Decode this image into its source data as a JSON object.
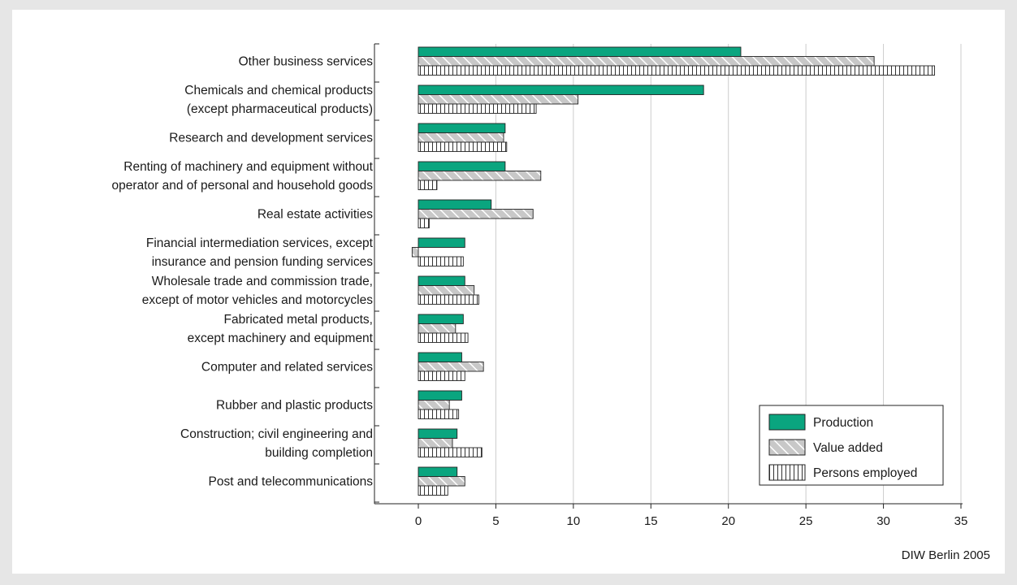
{
  "source": "DIW Berlin 2005",
  "colors": {
    "production": "#0aa57f",
    "value_added": "#c8c8c8",
    "persons_employed": "#ffffff",
    "grid": "#cccccc"
  },
  "chart_data": {
    "type": "bar",
    "orientation": "horizontal",
    "title": "",
    "xlabel": "",
    "ylabel": "",
    "xlim": [
      -2.5,
      35
    ],
    "xticks": [
      0,
      5,
      10,
      15,
      20,
      25,
      30,
      35
    ],
    "grid": "vertical",
    "legend_position": "bottom-right",
    "categories": [
      [
        "Other business services"
      ],
      [
        "Chemicals and chemical products",
        "(except pharmaceutical products)"
      ],
      [
        "Research and development services"
      ],
      [
        "Renting of machinery and equipment without",
        "operator and of personal and household goods"
      ],
      [
        "Real estate activities"
      ],
      [
        "Financial intermediation services, except",
        "insurance and pension funding services"
      ],
      [
        "Wholesale trade and commission trade,",
        "except of motor vehicles and motorcycles"
      ],
      [
        "Fabricated metal products,",
        "except machinery and equipment"
      ],
      [
        "Computer and related services"
      ],
      [
        "Rubber and plastic products"
      ],
      [
        "Construction; civil engineering and",
        "building completion"
      ],
      [
        "Post and telecommunications"
      ]
    ],
    "series": [
      {
        "name": "Production",
        "pattern": "solid",
        "values": [
          20.8,
          18.4,
          5.6,
          5.6,
          4.7,
          3.0,
          3.0,
          2.9,
          2.8,
          2.8,
          2.5,
          2.5
        ]
      },
      {
        "name": "Value added",
        "pattern": "diagonal-hatch",
        "values": [
          29.4,
          10.3,
          5.5,
          7.9,
          7.4,
          -0.4,
          3.6,
          2.4,
          4.2,
          2.0,
          2.2,
          3.0
        ]
      },
      {
        "name": "Persons employed",
        "pattern": "vertical-hatch",
        "values": [
          33.3,
          7.6,
          5.7,
          1.2,
          0.7,
          2.9,
          3.9,
          3.2,
          3.0,
          2.6,
          4.1,
          1.9
        ]
      }
    ]
  }
}
